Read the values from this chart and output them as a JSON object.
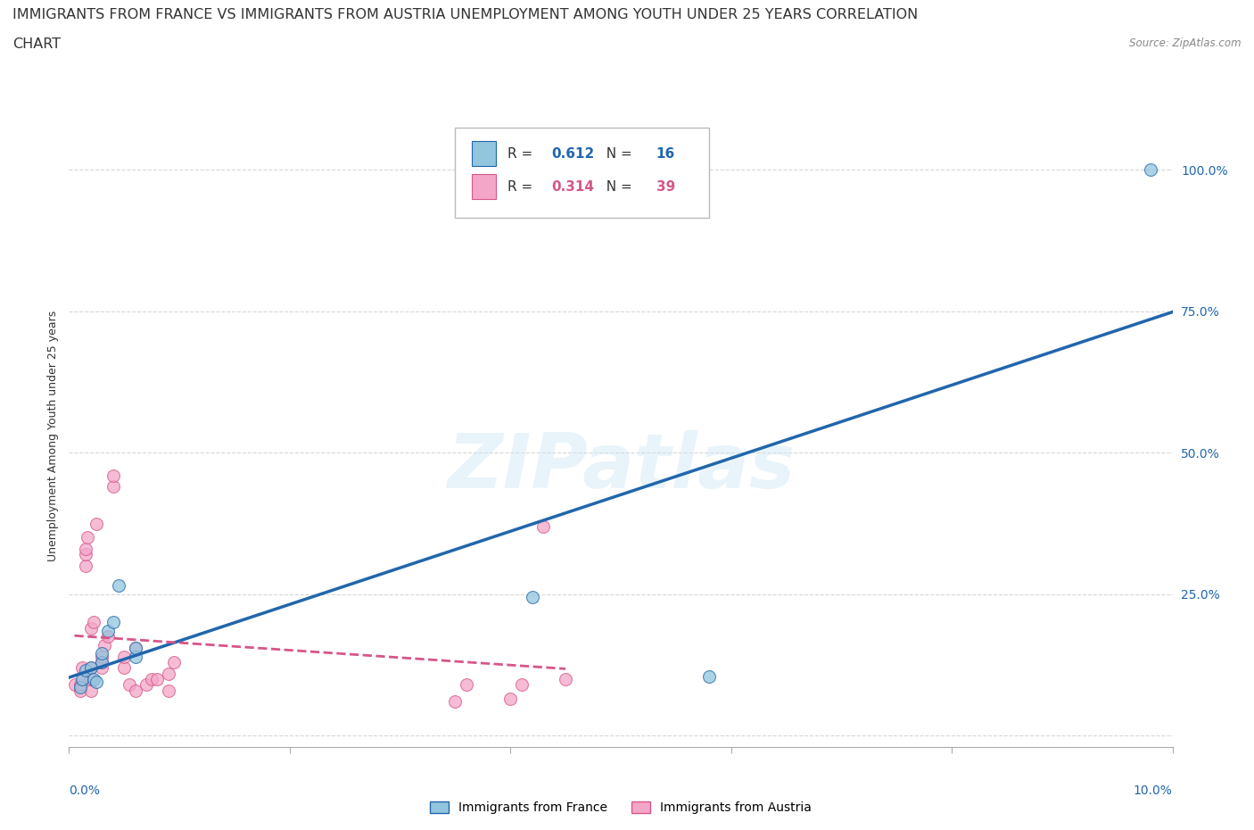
{
  "title_line1": "IMMIGRANTS FROM FRANCE VS IMMIGRANTS FROM AUSTRIA UNEMPLOYMENT AMONG YOUTH UNDER 25 YEARS CORRELATION",
  "title_line2": "CHART",
  "source": "Source: ZipAtlas.com",
  "ylabel": "Unemployment Among Youth under 25 years",
  "xlim": [
    0.0,
    0.1
  ],
  "ylim": [
    -0.02,
    1.08
  ],
  "france_R": 0.612,
  "france_N": 16,
  "austria_R": 0.314,
  "austria_N": 39,
  "france_color": "#92c5de",
  "austria_color": "#f4a6c8",
  "france_line_color": "#2166ac",
  "austria_line_color": "#d6568a",
  "yticks": [
    0.0,
    0.25,
    0.5,
    0.75,
    1.0
  ],
  "ytick_labels": [
    "",
    "25.0%",
    "50.0%",
    "75.0%",
    "100.0%"
  ],
  "france_x": [
    0.001,
    0.0012,
    0.0015,
    0.002,
    0.0022,
    0.0025,
    0.003,
    0.003,
    0.0035,
    0.004,
    0.0045,
    0.006,
    0.006,
    0.042,
    0.058,
    0.098
  ],
  "france_y": [
    0.085,
    0.1,
    0.115,
    0.12,
    0.1,
    0.095,
    0.13,
    0.145,
    0.185,
    0.2,
    0.265,
    0.14,
    0.155,
    0.245,
    0.105,
    1.0
  ],
  "austria_x": [
    0.0005,
    0.001,
    0.001,
    0.0012,
    0.0013,
    0.0015,
    0.0015,
    0.0015,
    0.0017,
    0.002,
    0.002,
    0.002,
    0.002,
    0.0022,
    0.0025,
    0.003,
    0.003,
    0.003,
    0.0032,
    0.0035,
    0.004,
    0.004,
    0.005,
    0.005,
    0.0055,
    0.006,
    0.006,
    0.007,
    0.0075,
    0.008,
    0.009,
    0.009,
    0.0095,
    0.035,
    0.036,
    0.04,
    0.041,
    0.043,
    0.045
  ],
  "austria_y": [
    0.09,
    0.08,
    0.09,
    0.12,
    0.1,
    0.3,
    0.32,
    0.33,
    0.35,
    0.08,
    0.1,
    0.12,
    0.19,
    0.2,
    0.375,
    0.12,
    0.13,
    0.14,
    0.16,
    0.175,
    0.44,
    0.46,
    0.12,
    0.14,
    0.09,
    0.08,
    0.155,
    0.09,
    0.1,
    0.1,
    0.08,
    0.11,
    0.13,
    0.06,
    0.09,
    0.065,
    0.09,
    0.37,
    0.1
  ],
  "title_fontsize": 11.5,
  "label_fontsize": 9,
  "tick_fontsize": 10,
  "legend_fontsize": 11
}
